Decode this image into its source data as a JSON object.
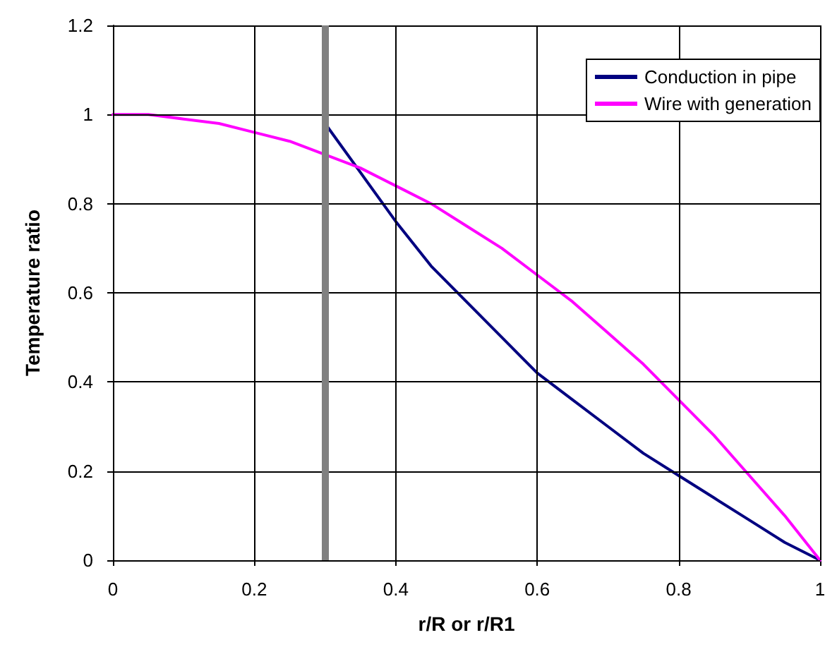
{
  "chart_data": {
    "type": "line",
    "xlabel": "r/R or r/R1",
    "ylabel": "Temperature ratio",
    "xlim": [
      0,
      1
    ],
    "xticks": [
      0,
      0.2,
      0.4,
      0.6,
      0.8,
      1
    ],
    "ylim": [
      0,
      1.2
    ],
    "yticks": [
      0,
      0.2,
      0.4,
      0.6,
      0.8,
      1,
      1.2
    ],
    "grid": true,
    "legend": "top right",
    "marker": "none",
    "line_style": "solid",
    "ref_lines": [
      {
        "axis": "x",
        "value": 0.3,
        "label": null,
        "color": "#808080"
      }
    ],
    "series": [
      {
        "name": "Conduction in pipe",
        "color": "#000080",
        "x": [
          0.3,
          0.35,
          0.4,
          0.45,
          0.5,
          0.55,
          0.6,
          0.65,
          0.7,
          0.75,
          0.8,
          0.85,
          0.9,
          0.95,
          1
        ],
        "values": [
          0.98,
          0.87,
          0.76,
          0.66,
          0.58,
          0.5,
          0.42,
          0.36,
          0.3,
          0.24,
          0.19,
          0.14,
          0.09,
          0.04,
          0
        ]
      },
      {
        "name": "Wire with generation",
        "color": "#ff00ff",
        "x": [
          0,
          0.05,
          0.1,
          0.15,
          0.2,
          0.25,
          0.3,
          0.35,
          0.4,
          0.45,
          0.5,
          0.55,
          0.6,
          0.65,
          0.7,
          0.75,
          0.8,
          0.85,
          0.9,
          0.95,
          1
        ],
        "values": [
          1,
          1,
          0.99,
          0.98,
          0.96,
          0.94,
          0.91,
          0.88,
          0.84,
          0.8,
          0.75,
          0.7,
          0.64,
          0.58,
          0.51,
          0.44,
          0.36,
          0.28,
          0.19,
          0.1,
          0
        ]
      }
    ]
  }
}
